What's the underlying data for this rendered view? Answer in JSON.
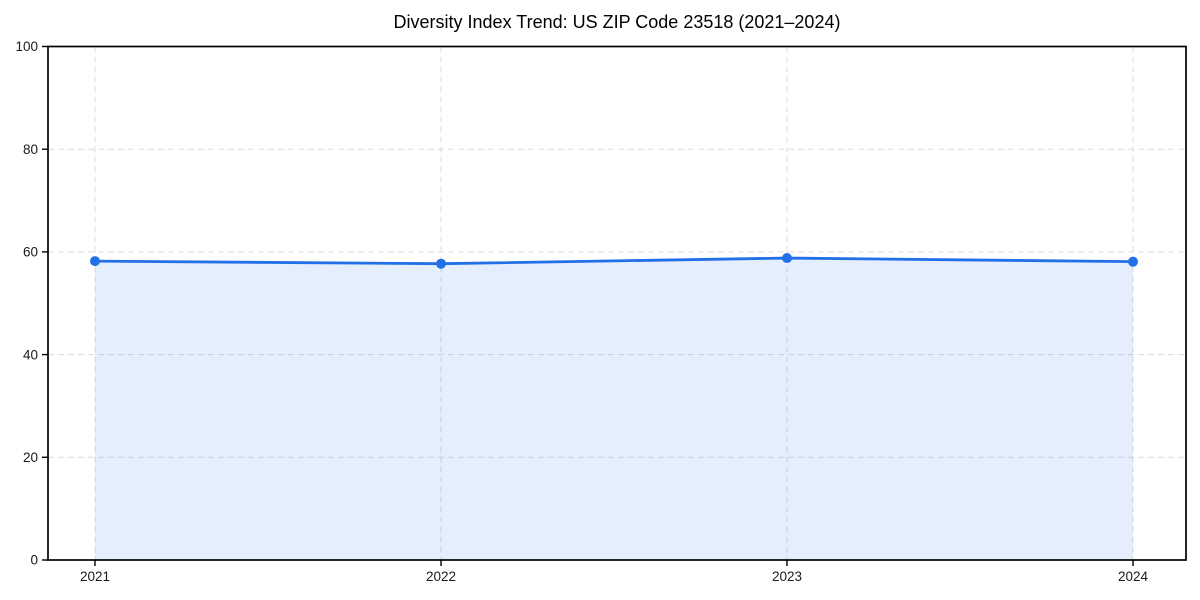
{
  "chart_data": {
    "type": "line",
    "title": "Diversity Index Trend: US ZIP Code 23518 (2021–2024)",
    "categories": [
      "2021",
      "2022",
      "2023",
      "2024"
    ],
    "x": [
      2021,
      2022,
      2023,
      2024
    ],
    "series": [
      {
        "name": "Diversity Index",
        "values": [
          58.2,
          57.7,
          58.8,
          58.1
        ]
      }
    ],
    "xlabel": "",
    "ylabel": "",
    "ylim": [
      0,
      100
    ],
    "yticks": [
      0,
      20,
      40,
      60,
      80,
      100
    ],
    "grid": true,
    "grid_style": "dashed",
    "legend": "none",
    "area": true,
    "marker": "circle"
  },
  "colors": {
    "line": "#2270e8",
    "marker": "#2270e8",
    "area_fill": "#2270e8",
    "area_opacity": 0.12,
    "grid": "#dcdcdc",
    "spine": "#000000",
    "text": "#000000",
    "background": "#ffffff"
  }
}
